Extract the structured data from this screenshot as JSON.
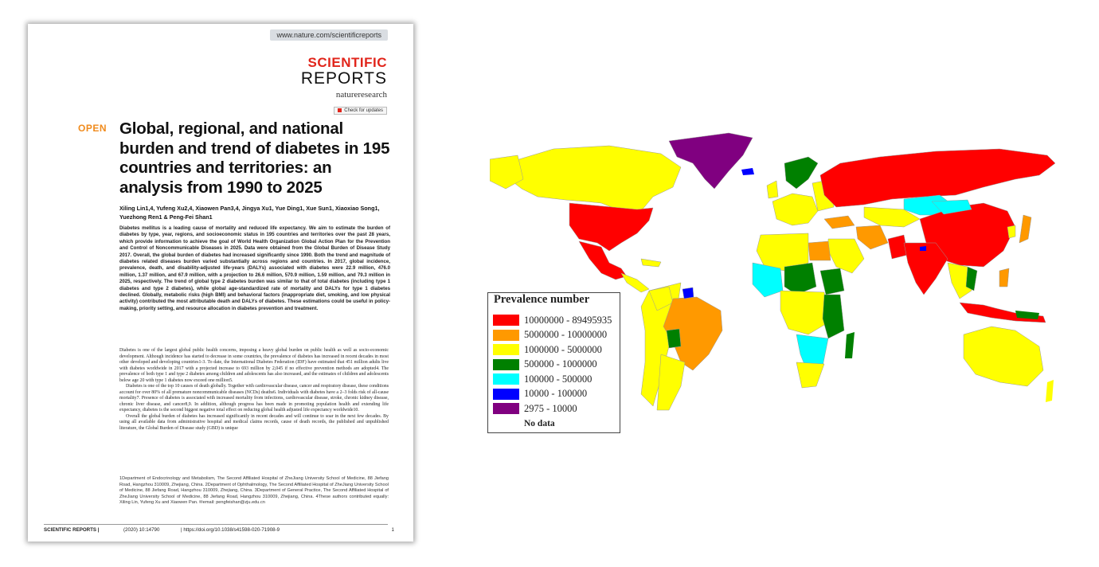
{
  "paper": {
    "url": "www.nature.com/scientificreports",
    "brand_top": "SCIENTIFIC",
    "brand_bottom": "REPORTS",
    "publisher": "natureresearch",
    "check_updates": "Check for updates",
    "open_badge": "OPEN",
    "title": "Global, regional, and national burden and trend of diabetes in 195 countries and territories: an analysis from 1990 to 2025",
    "authors": "Xiling Lin1,4, Yufeng Xu2,4, Xiaowen Pan3,4, Jingya Xu1, Yue Ding1, Xue Sun1, Xiaoxiao Song1, Yuezhong Ren1 & Peng-Fei Shan1",
    "abstract": "Diabetes mellitus is a leading cause of mortality and reduced life expectancy. We aim to estimate the burden of diabetes by type, year, regions, and socioeconomic status in 195 countries and territories over the past 28 years, which provide information to achieve the goal of World Health Organization Global Action Plan for the Prevention and Control of Noncommunicable Diseases in 2025. Data were obtained from the Global Burden of Disease Study 2017. Overall, the global burden of diabetes had increased significantly since 1990. Both the trend and magnitude of diabetes related diseases burden varied substantially across regions and countries. In 2017, global incidence, prevalence, death, and disability-adjusted life-years (DALYs) associated with diabetes were 22.9 million, 476.0 million, 1.37 million, and 67.9 million, with a projection to 26.6 million, 570.9 million, 1.59 million, and 79.3 million in 2025, respectively. The trend of global type 2 diabetes burden was similar to that of total diabetes (including type 1 diabetes and type 2 diabetes), while global age-standardized rate of mortality and DALYs for type 1 diabetes declined. Globally, metabolic risks (high BMI) and behavioral factors (inappropriate diet, smoking, and low physical activity) contributed the most attributable death and DALYs of diabetes. These estimations could be useful in policy-making, priority setting, and resource allocation in diabetes prevention and treatment.",
    "body_p1": "Diabetes is one of the largest global public health concerns, imposing a heavy global burden on public health as well as socio-economic development. Although incidence has started to decrease in some countries, the prevalence of diabetes has increased in recent decades in most other developed and developing countries1-3. To date, the International Diabetes Federation (IDF) have estimated that 451 million adults live with diabetes worldwide in 2017 with a projected increase to 693 million by 2,045 if no effective prevention methods are adopted4. The prevalence of both type 1 and type 2 diabetes among children and adolescents has also increased, and the estimates of children and adolescents below age 20 with type 1 diabetes now exceed one million5.",
    "body_p2": "Diabetes is one of the top 10 causes of death globally. Together with cardiovascular disease, cancer and respiratory disease, these conditions account for over 80% of all premature noncommunicable diseases (NCDs) deaths6. Individuals with diabetes have a 2–3 folds risk of all-cause mortality7. Presence of diabetes is associated with increased mortality from infections, cardiovascular disease, stroke, chronic kidney disease, chronic liver disease, and cancer8,9. In addition, although progress has been made in promoting population health and extending life expectancy, diabetes is the second biggest negative total effect on reducing global health adjusted life expectancy worldwide10.",
    "body_p3": "Overall the global burden of diabetes has increased significantly in recent decades and will continue to soar in the next few decades. By using all available data from administrative hospital and medical claims records, cause of death records, the published and unpublished literature, the Global Burden of Disease study (GBD) is unique",
    "affiliations": "1Department of Endocrinology and Metabolism, The Second Affiliated Hospital of ZheJiang University School of Medicine, 88 Jiefang Road, Hangzhou 310009, Zhejiang, China. 2Department of Ophthalmology, The Second Affiliated Hospital of ZheJiang University School of Medicine, 88 Jiefang Road, Hangzhou 310009, Zhejiang, China. 3Department of General Practice, The Second Affiliated Hospital of ZheJiang University School of Medicine, 88 Jiefang Road, Hangzhou 310009, Zhejiang, China. 4These authors contributed equally: Xiling Lin, Yufeng Xu and Xiaowen Pan. ✉email: pengfeishan@zju.edu.cn",
    "footer_journal": "SCIENTIFIC REPORTS |",
    "footer_volume": "(2020) 10:14790",
    "footer_doi": "| https://doi.org/10.1038/s41598-020-71908-9",
    "footer_page": "1"
  },
  "map": {
    "legend_title": "Prevalence number",
    "legend": [
      {
        "label": "10000000 - 89495935",
        "color": "#ff0000"
      },
      {
        "label": "5000000 - 10000000",
        "color": "#ff9900"
      },
      {
        "label": "1000000 - 5000000",
        "color": "#ffff00"
      },
      {
        "label": "500000 - 1000000",
        "color": "#008000"
      },
      {
        "label": "100000 - 500000",
        "color": "#00ffff"
      },
      {
        "label": "10000 - 100000",
        "color": "#0000ff"
      },
      {
        "label": "2975 - 10000",
        "color": "#800080"
      },
      {
        "label": "No data",
        "color": "#ffffff"
      }
    ]
  }
}
